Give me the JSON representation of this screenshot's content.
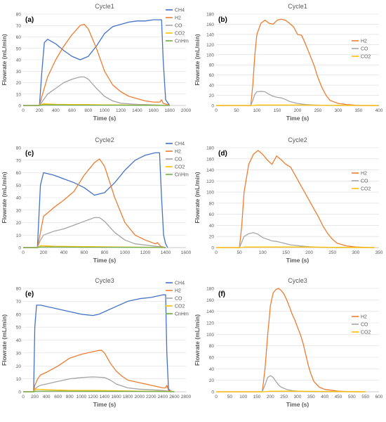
{
  "colors": {
    "CH4": "#4472C4",
    "H2": "#ED7D31",
    "CO": "#A5A5A5",
    "CO2": "#FFC000",
    "CnHm": "#70AD47",
    "grid": "#D9D9D9",
    "axis": "#BFBFBF"
  },
  "chart_data": [
    {
      "type": "line",
      "panel": "(a)",
      "title": "Cycle1",
      "xlabel": "Time (s)",
      "ylabel": "Flowrate (mL/min)",
      "xlim": [
        0,
        2000
      ],
      "ylim": [
        0,
        80
      ],
      "xticks": [
        0,
        200,
        400,
        600,
        800,
        1000,
        1200,
        1400,
        1600,
        1800,
        2000
      ],
      "yticks": [
        0,
        10,
        20,
        30,
        40,
        50,
        60,
        70,
        80
      ],
      "grid": true,
      "legend": "right",
      "series": [
        {
          "name": "CH4",
          "x": [
            0,
            200,
            230,
            260,
            300,
            400,
            500,
            600,
            700,
            800,
            900,
            1000,
            1100,
            1200,
            1300,
            1400,
            1500,
            1600,
            1700,
            1720,
            1750,
            1800
          ],
          "y": [
            0,
            0,
            30,
            55,
            58,
            54,
            48,
            43,
            40,
            43,
            52,
            63,
            69,
            71,
            73,
            74,
            74,
            75,
            75,
            40,
            5,
            0
          ]
        },
        {
          "name": "H2",
          "x": [
            0,
            200,
            230,
            300,
            400,
            500,
            600,
            700,
            750,
            800,
            900,
            1000,
            1100,
            1200,
            1300,
            1400,
            1500,
            1600,
            1680,
            1700,
            1720,
            1800
          ],
          "y": [
            0,
            0,
            8,
            25,
            40,
            52,
            62,
            70,
            71,
            67,
            50,
            30,
            18,
            12,
            8,
            6,
            4,
            3,
            3,
            5,
            2,
            0
          ]
        },
        {
          "name": "CO",
          "x": [
            0,
            200,
            250,
            300,
            400,
            500,
            600,
            700,
            750,
            800,
            900,
            1000,
            1100,
            1200,
            1300,
            1400,
            1500,
            1600,
            1700,
            1800
          ],
          "y": [
            0,
            0,
            5,
            10,
            15,
            20,
            23,
            25,
            25,
            23,
            15,
            8,
            4,
            2,
            1.5,
            1,
            0.8,
            0.5,
            0.3,
            0
          ]
        },
        {
          "name": "CO2",
          "x": [
            0,
            200,
            250,
            400,
            600,
            800,
            1000,
            1200,
            1400,
            1600,
            1800
          ],
          "y": [
            0,
            0,
            1.5,
            1,
            0.8,
            0.8,
            0.5,
            0.5,
            0.3,
            0.3,
            0
          ]
        },
        {
          "name": "CnHm",
          "x": [
            0,
            200,
            250,
            400,
            600,
            800,
            1000,
            1200,
            1400,
            1600,
            1800
          ],
          "y": [
            0,
            0,
            0.5,
            0.5,
            0.3,
            0.3,
            0.3,
            0.3,
            0.2,
            0.2,
            0
          ]
        }
      ]
    },
    {
      "type": "line",
      "panel": "(b)",
      "title": "Cycle1",
      "xlabel": "Time (s)",
      "ylabel": "Flowrate (mL/min)",
      "xlim": [
        0,
        400
      ],
      "ylim": [
        0,
        180
      ],
      "xticks": [
        0,
        50,
        100,
        150,
        200,
        250,
        300,
        350,
        400
      ],
      "yticks": [
        0,
        20,
        40,
        60,
        80,
        100,
        120,
        140,
        160,
        180
      ],
      "grid": true,
      "legend": "right",
      "series": [
        {
          "name": "H2",
          "x": [
            0,
            85,
            90,
            95,
            100,
            110,
            120,
            130,
            140,
            150,
            160,
            170,
            180,
            190,
            200,
            210,
            220,
            230,
            240,
            250,
            260,
            270,
            280,
            300,
            320,
            350,
            400
          ],
          "y": [
            0,
            0,
            40,
            100,
            140,
            162,
            168,
            162,
            160,
            168,
            170,
            168,
            162,
            155,
            140,
            138,
            120,
            100,
            80,
            55,
            35,
            20,
            10,
            4,
            2,
            0,
            0
          ]
        },
        {
          "name": "CO",
          "x": [
            0,
            85,
            90,
            95,
            100,
            110,
            120,
            130,
            140,
            150,
            160,
            170,
            180,
            200,
            220,
            240,
            260,
            300,
            400
          ],
          "y": [
            0,
            0,
            10,
            22,
            27,
            28,
            27,
            22,
            18,
            16,
            15,
            12,
            8,
            4,
            2,
            1,
            0.5,
            0,
            0
          ]
        },
        {
          "name": "CO2",
          "x": [
            0,
            90,
            100,
            150,
            200,
            250,
            400
          ],
          "y": [
            0,
            0,
            1,
            1,
            1,
            0.5,
            0
          ]
        }
      ]
    },
    {
      "type": "line",
      "panel": "(c)",
      "title": "Cycle2",
      "xlabel": "Time (s)",
      "ylabel": "Flowrate (mL/min)",
      "xlim": [
        0,
        1600
      ],
      "ylim": [
        0,
        80
      ],
      "xticks": [
        0,
        200,
        400,
        600,
        800,
        1000,
        1200,
        1400,
        1600
      ],
      "yticks": [
        0,
        10,
        20,
        30,
        40,
        50,
        60,
        70,
        80
      ],
      "grid": true,
      "legend": "right",
      "series": [
        {
          "name": "CH4",
          "x": [
            0,
            140,
            170,
            200,
            300,
            400,
            500,
            600,
            700,
            800,
            900,
            1000,
            1100,
            1200,
            1300,
            1340,
            1360,
            1380,
            1400,
            1420
          ],
          "y": [
            0,
            0,
            50,
            60,
            58,
            55,
            52,
            48,
            42,
            44,
            52,
            62,
            70,
            74,
            76,
            76,
            40,
            10,
            3,
            0
          ]
        },
        {
          "name": "H2",
          "x": [
            0,
            140,
            170,
            200,
            300,
            400,
            500,
            600,
            700,
            750,
            800,
            900,
            1000,
            1100,
            1200,
            1300,
            1320,
            1350,
            1400
          ],
          "y": [
            0,
            0,
            12,
            25,
            32,
            38,
            45,
            58,
            68,
            71,
            65,
            40,
            20,
            10,
            6,
            3,
            4,
            1,
            0
          ]
        },
        {
          "name": "CO",
          "x": [
            0,
            140,
            170,
            200,
            300,
            400,
            500,
            600,
            700,
            750,
            800,
            900,
            1000,
            1100,
            1200,
            1300,
            1400
          ],
          "y": [
            0,
            0,
            6,
            10,
            13,
            15,
            18,
            21,
            24,
            24,
            21,
            12,
            6,
            3,
            2,
            1,
            0
          ]
        },
        {
          "name": "CO2",
          "x": [
            0,
            140,
            170,
            300,
            600,
            900,
            1200,
            1400
          ],
          "y": [
            0,
            0,
            1.5,
            1,
            0.8,
            0.5,
            0.3,
            0
          ]
        },
        {
          "name": "CnHm",
          "x": [
            0,
            140,
            170,
            300,
            600,
            900,
            1200,
            1400
          ],
          "y": [
            0,
            0,
            0.5,
            0.5,
            0.3,
            0.3,
            0.2,
            0
          ]
        }
      ]
    },
    {
      "type": "line",
      "panel": "(d)",
      "title": "Cycle2",
      "xlabel": "Time (s)",
      "ylabel": "Flowrate (mL/min)",
      "xlim": [
        0,
        350
      ],
      "ylim": [
        0,
        180
      ],
      "xticks": [
        0,
        50,
        100,
        150,
        200,
        250,
        300,
        350
      ],
      "yticks": [
        0,
        20,
        40,
        60,
        80,
        100,
        120,
        140,
        160,
        180
      ],
      "grid": true,
      "legend": "right",
      "series": [
        {
          "name": "H2",
          "x": [
            0,
            50,
            55,
            60,
            70,
            80,
            90,
            100,
            110,
            120,
            130,
            140,
            150,
            160,
            170,
            180,
            190,
            200,
            210,
            220,
            230,
            240,
            250,
            260,
            280,
            300,
            340
          ],
          "y": [
            0,
            0,
            40,
            100,
            150,
            168,
            175,
            168,
            158,
            150,
            165,
            158,
            150,
            145,
            130,
            115,
            100,
            85,
            70,
            55,
            38,
            25,
            15,
            8,
            3,
            1,
            0
          ]
        },
        {
          "name": "CO",
          "x": [
            0,
            50,
            55,
            60,
            70,
            80,
            90,
            100,
            110,
            120,
            130,
            140,
            150,
            160,
            180,
            200,
            220,
            260,
            340
          ],
          "y": [
            0,
            0,
            10,
            20,
            25,
            27,
            24,
            18,
            15,
            12,
            11,
            9,
            7,
            5,
            3,
            1.5,
            0.5,
            0,
            0
          ]
        },
        {
          "name": "CO2",
          "x": [
            0,
            55,
            60,
            100,
            200,
            250,
            340
          ],
          "y": [
            0,
            0,
            1,
            1,
            1,
            0.5,
            0
          ]
        }
      ]
    },
    {
      "type": "line",
      "panel": "(e)",
      "title": "Cycle3",
      "xlabel": "Time (s)",
      "ylabel": "Flowrate (mL/min)",
      "xlim": [
        0,
        2800
      ],
      "ylim": [
        0,
        80
      ],
      "xticks": [
        0,
        200,
        400,
        600,
        800,
        1000,
        1200,
        1400,
        1600,
        1800,
        2000,
        2200,
        2400,
        2600,
        2800
      ],
      "yticks": [
        0,
        10,
        20,
        30,
        40,
        50,
        60,
        70,
        80
      ],
      "grid": true,
      "legend": "right",
      "series": [
        {
          "name": "CH4",
          "x": [
            0,
            180,
            200,
            230,
            300,
            400,
            600,
            800,
            1000,
            1200,
            1300,
            1400,
            1600,
            1800,
            2000,
            2200,
            2400,
            2450,
            2470,
            2500,
            2550
          ],
          "y": [
            0,
            0,
            50,
            67,
            67,
            66,
            64,
            62,
            60,
            59,
            60,
            62,
            66,
            70,
            72,
            73,
            75,
            75,
            30,
            2,
            0
          ]
        },
        {
          "name": "H2",
          "x": [
            0,
            180,
            200,
            250,
            300,
            400,
            600,
            800,
            1000,
            1100,
            1200,
            1300,
            1350,
            1400,
            1500,
            1600,
            1700,
            1800,
            2000,
            2200,
            2400,
            2450,
            2470,
            2500,
            2600
          ],
          "y": [
            0,
            0,
            5,
            10,
            13,
            15,
            20,
            26,
            29,
            30,
            31,
            32,
            32,
            30,
            22,
            16,
            12,
            9,
            7,
            5,
            3,
            3,
            5,
            1,
            0
          ]
        },
        {
          "name": "CO",
          "x": [
            0,
            180,
            200,
            250,
            300,
            400,
            600,
            800,
            1000,
            1200,
            1400,
            1500,
            1600,
            1800,
            2000,
            2200,
            2400,
            2500,
            2600
          ],
          "y": [
            0,
            0,
            2,
            4,
            5,
            6,
            8,
            10,
            11,
            11.5,
            11,
            9,
            6,
            3,
            2,
            1.5,
            1,
            0.5,
            0
          ]
        },
        {
          "name": "CO2",
          "x": [
            0,
            180,
            220,
            400,
            800,
            1200,
            1600,
            2000,
            2400,
            2600
          ],
          "y": [
            0,
            0,
            2,
            1.5,
            1,
            1,
            0.8,
            0.5,
            0.3,
            0
          ]
        },
        {
          "name": "CnHm",
          "x": [
            0,
            180,
            220,
            600,
            1200,
            1800,
            2400,
            2600
          ],
          "y": [
            0,
            0,
            0.5,
            0.5,
            0.3,
            0.3,
            0.2,
            0
          ]
        }
      ]
    },
    {
      "type": "line",
      "panel": "(f)",
      "title": "Cycle3",
      "xlabel": "Time (s)",
      "ylabel": "Flowrate (mL/min)",
      "xlim": [
        0,
        600
      ],
      "ylim": [
        0,
        180
      ],
      "xticks": [
        0,
        50,
        100,
        150,
        200,
        250,
        300,
        350,
        400,
        450,
        500,
        550,
        600
      ],
      "yticks": [
        0,
        20,
        40,
        60,
        80,
        100,
        120,
        140,
        160,
        180
      ],
      "grid": true,
      "legend": "right",
      "series": [
        {
          "name": "H2",
          "x": [
            0,
            170,
            180,
            190,
            200,
            210,
            220,
            230,
            240,
            250,
            260,
            270,
            280,
            290,
            300,
            310,
            320,
            330,
            340,
            350,
            360,
            380,
            400,
            450,
            500,
            550
          ],
          "y": [
            0,
            0,
            40,
            100,
            150,
            172,
            178,
            180,
            176,
            170,
            160,
            148,
            135,
            125,
            112,
            100,
            85,
            65,
            45,
            30,
            18,
            8,
            4,
            1,
            0,
            0
          ]
        },
        {
          "name": "CO",
          "x": [
            0,
            170,
            180,
            190,
            200,
            210,
            220,
            230,
            240,
            260,
            280,
            300,
            340,
            400,
            550
          ],
          "y": [
            0,
            0,
            12,
            25,
            28,
            25,
            18,
            12,
            8,
            4,
            2,
            1,
            0.3,
            0,
            0
          ]
        },
        {
          "name": "CO2",
          "x": [
            0,
            180,
            200,
            300,
            400,
            550
          ],
          "y": [
            0,
            0,
            1,
            1,
            0.5,
            0
          ]
        }
      ]
    }
  ]
}
